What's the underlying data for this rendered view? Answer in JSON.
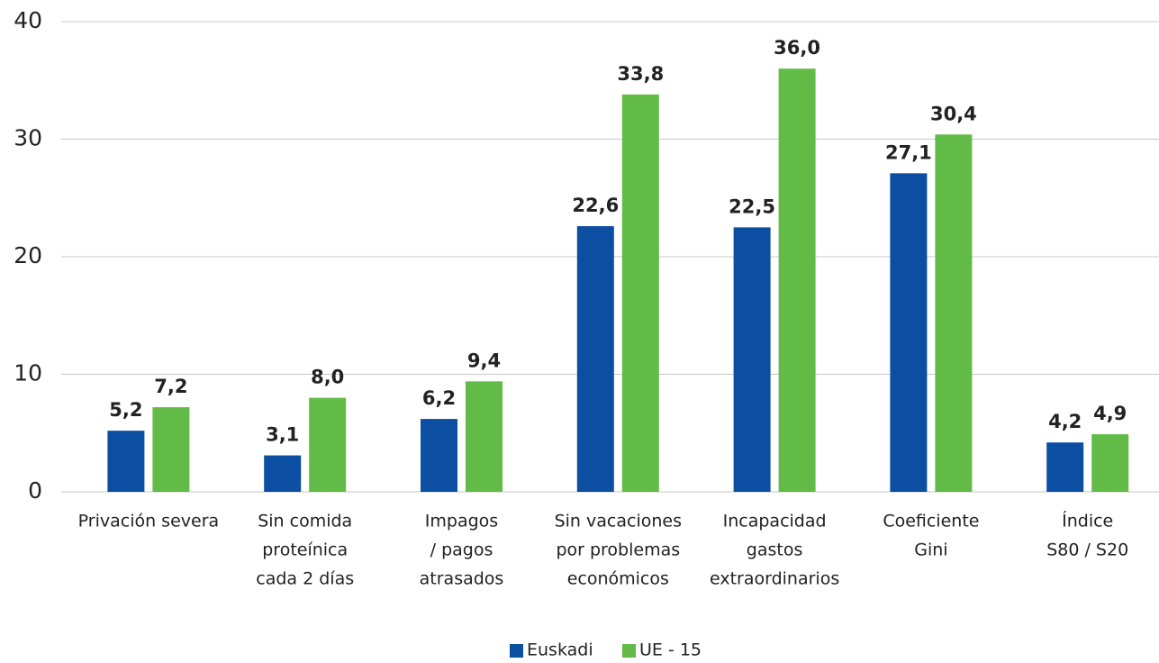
{
  "chart_data": {
    "type": "bar",
    "categories": [
      [
        "Privación severa"
      ],
      [
        "Sin comida",
        "proteínica",
        "cada 2 días"
      ],
      [
        "Impagos",
        "/ pagos",
        "atrasados"
      ],
      [
        "Sin vacaciones",
        "por problemas",
        "económicos"
      ],
      [
        "Incapacidad",
        "gastos",
        "extraordinarios"
      ],
      [
        "Coeficiente",
        "Gini"
      ],
      [
        "Índice",
        "S80 / S20"
      ]
    ],
    "series": [
      {
        "name": "Euskadi",
        "color": "#0b4ea2",
        "values": [
          5.2,
          3.1,
          6.2,
          22.6,
          22.5,
          27.1,
          4.2
        ],
        "value_labels": [
          "5,2",
          "3,1",
          "6,2",
          "22,6",
          "22,5",
          "27,1",
          "4,2"
        ]
      },
      {
        "name": "UE - 15",
        "color": "#62bb46",
        "values": [
          7.2,
          8.0,
          9.4,
          33.8,
          36.0,
          30.4,
          4.9
        ],
        "value_labels": [
          "7,2",
          "8,0",
          "9,4",
          "33,8",
          "36,0",
          "30,4",
          "4,9"
        ]
      }
    ],
    "ylim": [
      0,
      40
    ],
    "yticks": [
      0,
      10,
      20,
      30,
      40
    ],
    "grid": true,
    "legend": "bottom"
  }
}
